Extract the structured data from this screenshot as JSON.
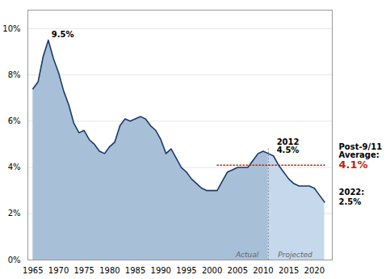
{
  "chart_data": {
    "type": "area",
    "x": [
      1965,
      1966,
      1967,
      1968,
      1969,
      1970,
      1971,
      1972,
      1973,
      1974,
      1975,
      1976,
      1977,
      1978,
      1979,
      1980,
      1981,
      1982,
      1983,
      1984,
      1985,
      1986,
      1987,
      1988,
      1989,
      1990,
      1991,
      1992,
      1993,
      1994,
      1995,
      1996,
      1997,
      1998,
      1999,
      2000,
      2001,
      2002,
      2003,
      2004,
      2005,
      2006,
      2007,
      2008,
      2009,
      2010,
      2011,
      2012,
      2013,
      2014,
      2015,
      2016,
      2017,
      2018,
      2019,
      2020,
      2021,
      2022
    ],
    "values": [
      7.4,
      7.7,
      8.8,
      9.5,
      8.7,
      8.1,
      7.3,
      6.7,
      5.9,
      5.5,
      5.6,
      5.2,
      5.0,
      4.7,
      4.6,
      4.9,
      5.1,
      5.8,
      6.1,
      6.0,
      6.1,
      6.2,
      6.1,
      5.8,
      5.6,
      5.2,
      4.6,
      4.8,
      4.4,
      4.0,
      3.8,
      3.5,
      3.3,
      3.1,
      3.0,
      3.0,
      3.0,
      3.4,
      3.8,
      3.9,
      4.0,
      4.0,
      4.0,
      4.3,
      4.6,
      4.7,
      4.6,
      4.5,
      4.1,
      3.8,
      3.5,
      3.3,
      3.2,
      3.2,
      3.2,
      3.1,
      2.8,
      2.5
    ],
    "color": "#1a3a6b",
    "areas": [
      {
        "name": "Actual",
        "color": "#a8bfd8",
        "from": 1965,
        "to": 2011
      },
      {
        "name": "Projected",
        "color": "#c5d8ec",
        "from": 2011,
        "to": 2022
      }
    ],
    "reference_line": {
      "value": 4.1,
      "from": 2001,
      "to": 2022,
      "color": "#cc2200",
      "line_style": "dotted"
    },
    "divider": {
      "x": 2011,
      "from": 0,
      "to": 4.8,
      "color": "#777777",
      "line_style": "dotted"
    },
    "annotations": [
      {
        "text": "9.5%",
        "x": 1968,
        "y": 9.5
      },
      {
        "text": "2012\n4.5%",
        "x": 2012,
        "y": 4.5
      }
    ],
    "side_notes": [
      {
        "text": "Post-9/11\nAverage:",
        "value_label": "4.1%",
        "y": 4.1,
        "color": "#cc2200"
      },
      {
        "text": "2022:",
        "value_label": "2.5%",
        "y": 2.5
      }
    ],
    "xlim": [
      1964,
      2023.5
    ],
    "xticks": [
      1965,
      1970,
      1975,
      1980,
      1985,
      1990,
      1995,
      2000,
      2005,
      2010,
      2015,
      2020
    ],
    "ylim": [
      0,
      10.8
    ],
    "yticks": [
      {
        "value": 0,
        "label": "0%"
      },
      {
        "value": 2,
        "label": "2%"
      },
      {
        "value": 4,
        "label": "4%"
      },
      {
        "value": 6,
        "label": "6%"
      },
      {
        "value": 8,
        "label": "8%"
      },
      {
        "value": 10,
        "label": "10%"
      }
    ],
    "grid": "y"
  }
}
